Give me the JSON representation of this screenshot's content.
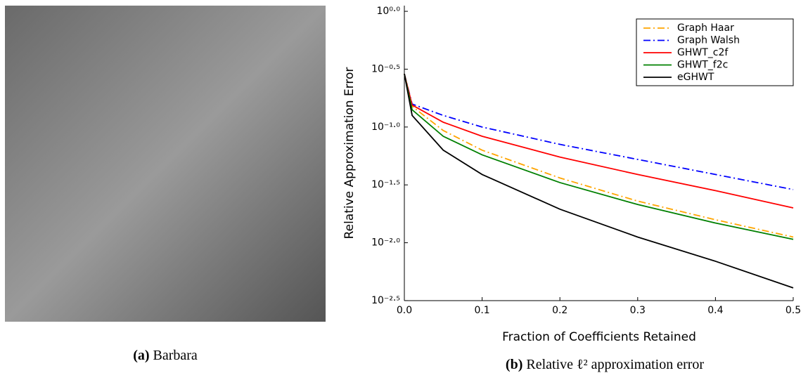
{
  "image_caption": {
    "label": "(a)",
    "text": "Barbara"
  },
  "chart_caption": {
    "label": "(b)",
    "text": "Relative ℓ² approximation error"
  },
  "chart_data": {
    "type": "line",
    "xlabel": "Fraction of Coefficients Retained",
    "ylabel": "Relative Approximation Error",
    "x": [
      0,
      0.01,
      0.05,
      0.1,
      0.2,
      0.3,
      0.4,
      0.5
    ],
    "series": [
      {
        "name": "Graph Haar",
        "color": "#ffa500",
        "style": "dash-dot",
        "values": [
          0.288,
          0.151,
          0.0933,
          0.0631,
          0.0363,
          0.0229,
          0.0158,
          0.0112
        ]
      },
      {
        "name": "Graph Walsh",
        "color": "#0000ff",
        "style": "dash-dot",
        "values": [
          0.288,
          0.158,
          0.126,
          0.1,
          0.0708,
          0.0525,
          0.0389,
          0.0288
        ]
      },
      {
        "name": "GHWT_c2f",
        "color": "#ff0000",
        "style": "solid",
        "values": [
          0.288,
          0.155,
          0.11,
          0.0832,
          0.055,
          0.0389,
          0.0282,
          0.02
        ]
      },
      {
        "name": "GHWT_f2c",
        "color": "#008000",
        "style": "solid",
        "values": [
          0.288,
          0.141,
          0.0832,
          0.0575,
          0.0331,
          0.0214,
          0.0148,
          0.0107
        ]
      },
      {
        "name": "eGHWT",
        "color": "#000000",
        "style": "solid",
        "values": [
          0.288,
          0.126,
          0.0631,
          0.0389,
          0.0195,
          0.0112,
          0.00692,
          0.00407
        ]
      }
    ],
    "xlim": [
      0,
      0.5
    ],
    "xticks": [
      {
        "value": 0,
        "label": "0.0"
      },
      0.1,
      0.2,
      0.3,
      0.4,
      0.5
    ],
    "ylim": [
      0.00316,
      1.12
    ],
    "yscale": "log",
    "yticks": [
      {
        "value": 1,
        "label": "10⁰·⁰"
      },
      {
        "value": 0.31623,
        "label": "10⁻⁰·⁵"
      },
      {
        "value": 0.1,
        "label": "10⁻¹·⁰"
      },
      {
        "value": 0.031623,
        "label": "10⁻¹·⁵"
      },
      {
        "value": 0.01,
        "label": "10⁻²·⁰"
      },
      {
        "value": 0.0031623,
        "label": "10⁻²·⁵"
      }
    ],
    "grid": false,
    "legend": "top-right"
  }
}
